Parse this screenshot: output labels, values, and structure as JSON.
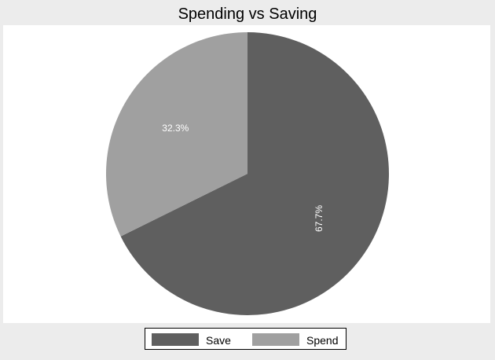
{
  "chart_data": {
    "type": "pie",
    "title": "Spending vs Saving",
    "slices": [
      {
        "label": "Save",
        "value": 67.7,
        "display": "67.7%",
        "color": "#5f5f5f"
      },
      {
        "label": "Spend",
        "value": 32.3,
        "display": "32.3%",
        "color": "#a0a0a0"
      }
    ],
    "start_angle": "12 o'clock",
    "direction": "clockwise",
    "legend_position": "bottom",
    "label_color": "#ffffff"
  }
}
